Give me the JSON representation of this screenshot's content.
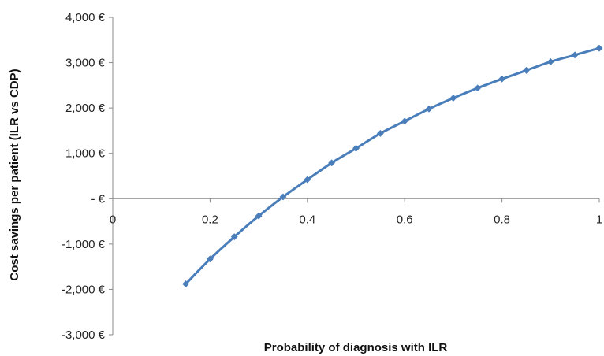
{
  "chart_data": {
    "type": "line",
    "title": "",
    "xlabel": "Probability of diagnosis with ILR",
    "ylabel": "Cost savings per patient (ILR vs CDP)",
    "xlim": [
      0,
      1
    ],
    "ylim": [
      -3000,
      4000
    ],
    "x_ticks": [
      0,
      0.2,
      0.4,
      0.6,
      0.8,
      1
    ],
    "x_tick_labels": [
      "0",
      "0.2",
      "0.4",
      "0.6",
      "0.8",
      "1"
    ],
    "y_ticks": [
      4000,
      3000,
      2000,
      1000,
      0,
      -1000,
      -2000,
      -3000
    ],
    "y_tick_labels": [
      "4,000 €",
      "3,000 €",
      "2,000 €",
      "1,000 €",
      "- €",
      "-1,000 €",
      "-2,000 €",
      "-3,000 €"
    ],
    "grid": false,
    "legend": "none",
    "series": [
      {
        "color": "#4a7ebb",
        "marker": "diamond",
        "x": [
          0.15,
          0.2,
          0.25,
          0.3,
          0.35,
          0.4,
          0.45,
          0.5,
          0.55,
          0.6,
          0.65,
          0.7,
          0.75,
          0.8,
          0.85,
          0.9,
          0.95,
          1.0
        ],
        "y": [
          -1880,
          -1330,
          -840,
          -380,
          40,
          420,
          790,
          1110,
          1440,
          1710,
          1980,
          2220,
          2440,
          2640,
          2830,
          3020,
          3170,
          3320
        ]
      }
    ]
  }
}
